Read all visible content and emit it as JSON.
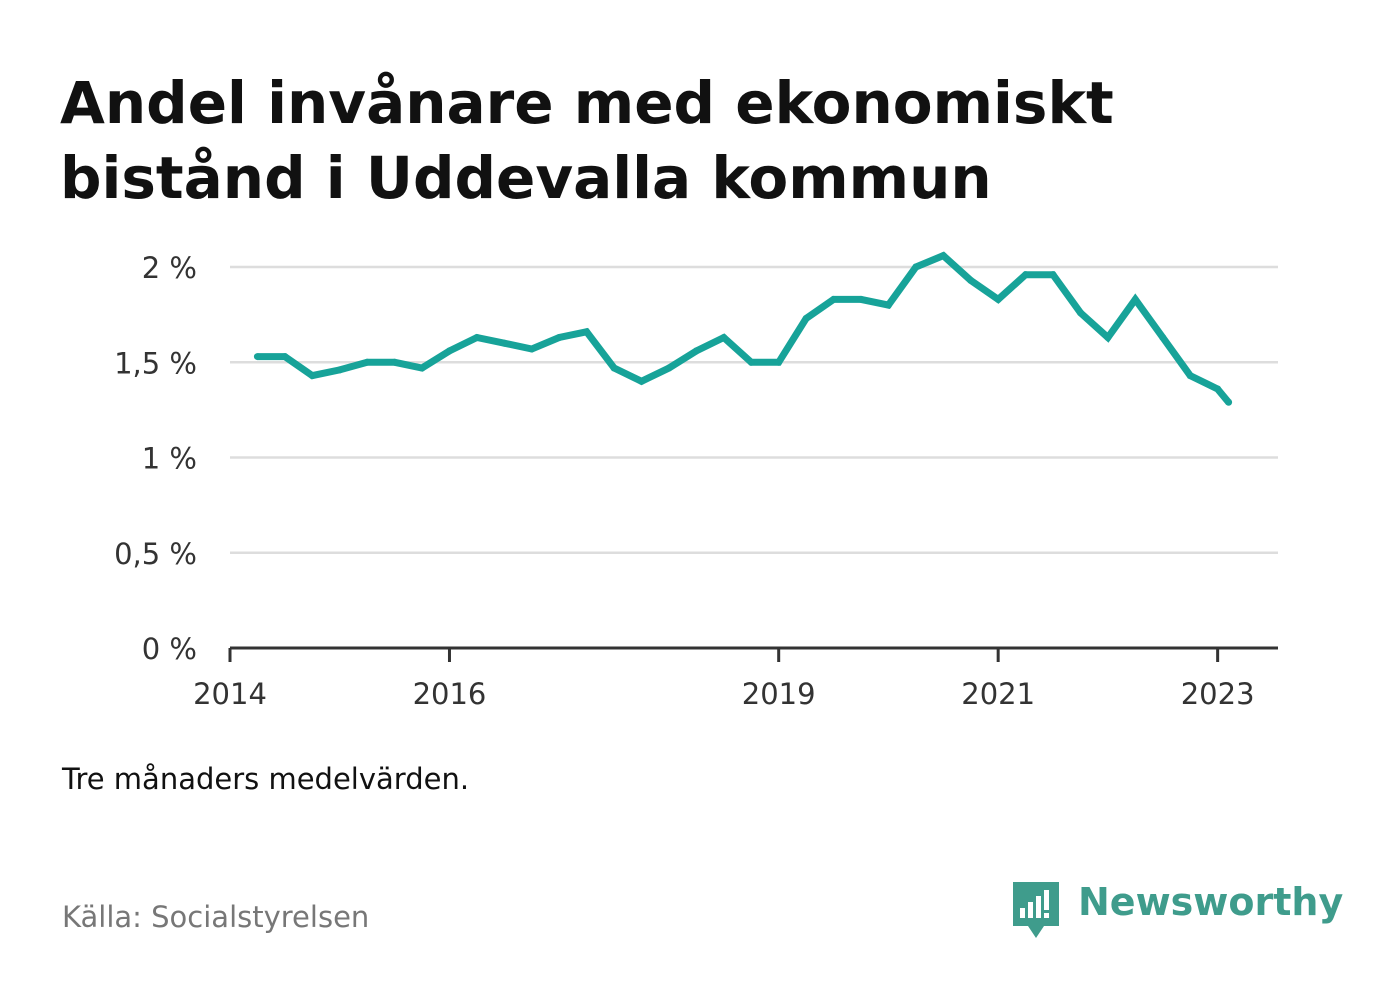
{
  "title": {
    "line1": "Andel invånare med ekonomiskt",
    "line2": "bistånd i Uddevalla kommun"
  },
  "note": "Tre månaders medelvärden.",
  "source": "Källa: Socialstyrelsen",
  "brand": {
    "name": "Newsworthy",
    "icon": "newsworthy-logo-icon",
    "color": "#3f9c8c"
  },
  "chart_data": {
    "type": "line",
    "title": "Andel invånare med ekonomiskt bistånd i Uddevalla kommun",
    "xlabel": "",
    "ylabel": "",
    "color": "#17a399",
    "grid": true,
    "ylim": [
      0,
      2.1
    ],
    "xlim": [
      2014.0,
      2023.55
    ],
    "yticks": [
      {
        "value": 0,
        "label": "0 %"
      },
      {
        "value": 0.5,
        "label": "0,5 %"
      },
      {
        "value": 1,
        "label": "1 %"
      },
      {
        "value": 1.5,
        "label": "1,5 %"
      },
      {
        "value": 2,
        "label": "2 %"
      }
    ],
    "xticks": [
      {
        "value": 2014,
        "label": "2014"
      },
      {
        "value": 2016,
        "label": "2016"
      },
      {
        "value": 2019,
        "label": "2019"
      },
      {
        "value": 2021,
        "label": "2021"
      },
      {
        "value": 2023,
        "label": "2023"
      }
    ],
    "x": [
      2014.25,
      2014.5,
      2014.75,
      2015.0,
      2015.25,
      2015.5,
      2015.75,
      2016.0,
      2016.25,
      2016.5,
      2016.75,
      2017.0,
      2017.25,
      2017.5,
      2017.75,
      2018.0,
      2018.25,
      2018.5,
      2018.75,
      2019.0,
      2019.25,
      2019.5,
      2019.75,
      2020.0,
      2020.25,
      2020.5,
      2020.75,
      2021.0,
      2021.25,
      2021.5,
      2021.75,
      2022.0,
      2022.25,
      2022.5,
      2022.75,
      2023.0,
      2023.1
    ],
    "values": [
      1.53,
      1.53,
      1.43,
      1.46,
      1.5,
      1.5,
      1.47,
      1.56,
      1.63,
      1.6,
      1.57,
      1.63,
      1.66,
      1.47,
      1.4,
      1.47,
      1.56,
      1.63,
      1.5,
      1.5,
      1.73,
      1.83,
      1.83,
      1.8,
      2.0,
      2.06,
      1.93,
      1.83,
      1.96,
      1.96,
      1.76,
      1.63,
      1.83,
      1.63,
      1.43,
      1.36,
      1.29
    ]
  }
}
